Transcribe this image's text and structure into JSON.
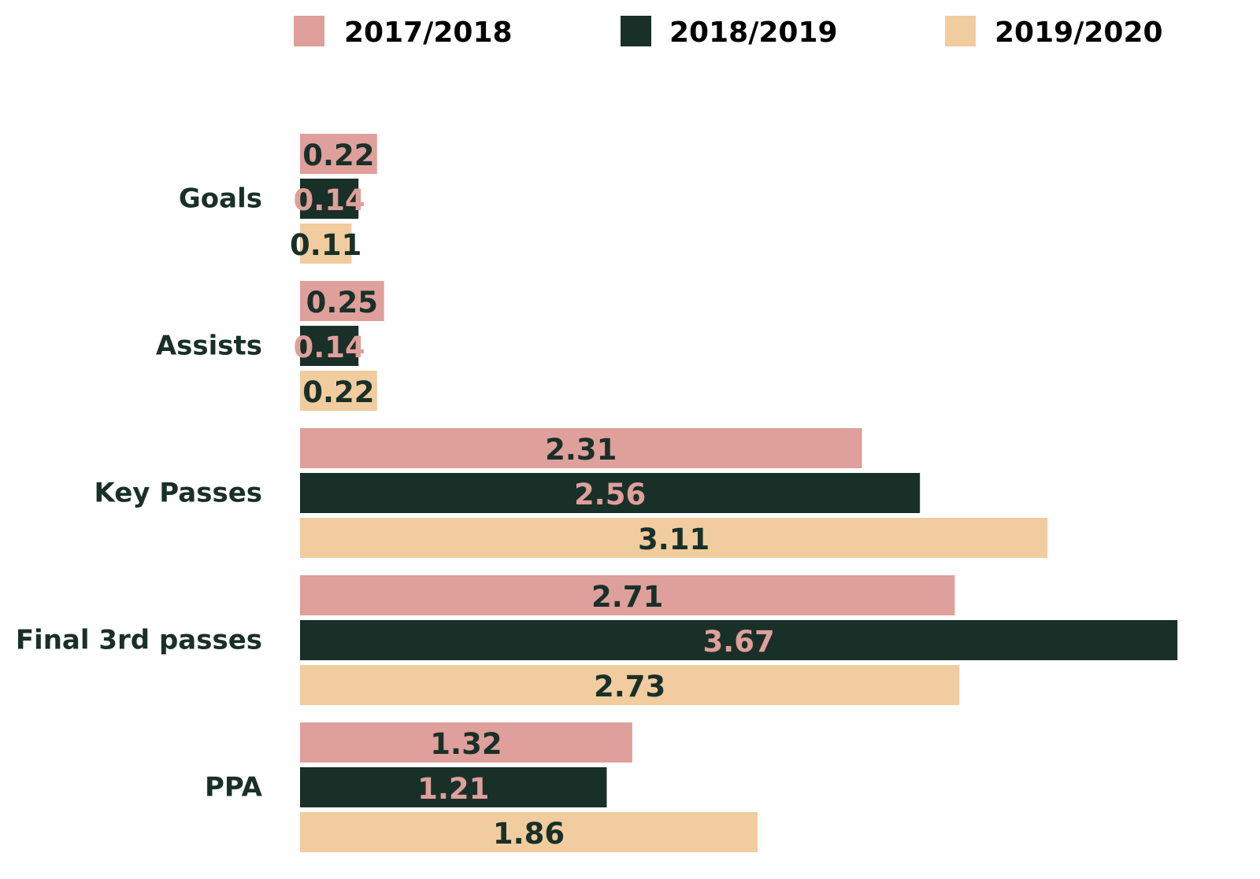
{
  "colors": {
    "background": "#ffffff",
    "text_dark": "#193028",
    "legend_text": "#000000"
  },
  "legend": {
    "items": [
      {
        "label": "2017/2018",
        "color": "#df9f9b"
      },
      {
        "label": "2018/2019",
        "color": "#193028"
      },
      {
        "label": "2019/2020",
        "color": "#f0cc9f"
      }
    ]
  },
  "chart_data": {
    "type": "bar",
    "orientation": "horizontal",
    "title": "",
    "xlabel": "",
    "ylabel": "",
    "grid": false,
    "legend_position": "top",
    "categories": [
      "Goals",
      "Assists",
      "Key Passes",
      "Final 3rd passes",
      "PPA"
    ],
    "series": [
      {
        "name": "2017/2018",
        "color": "#df9f9b",
        "label_color": "#193028",
        "values": [
          0.22,
          0.25,
          2.31,
          2.71,
          1.32
        ],
        "labels": [
          "0.22",
          "0.25",
          "2.31",
          "2.71",
          "1.32"
        ]
      },
      {
        "name": "2018/2019",
        "color": "#193028",
        "label_color": "#df9f9b",
        "values": [
          0.14,
          0.14,
          2.56,
          3.67,
          1.21
        ],
        "labels": [
          "0.14",
          "0.14",
          "2.56",
          "3.67",
          "1.21"
        ]
      },
      {
        "name": "2019/2020",
        "color": "#f0cc9f",
        "label_color": "#193028",
        "values": [
          0.11,
          0.22,
          3.11,
          2.73,
          1.86
        ],
        "labels": [
          "0.11",
          "0.22",
          "3.11",
          "2.73",
          "1.86"
        ]
      }
    ]
  }
}
